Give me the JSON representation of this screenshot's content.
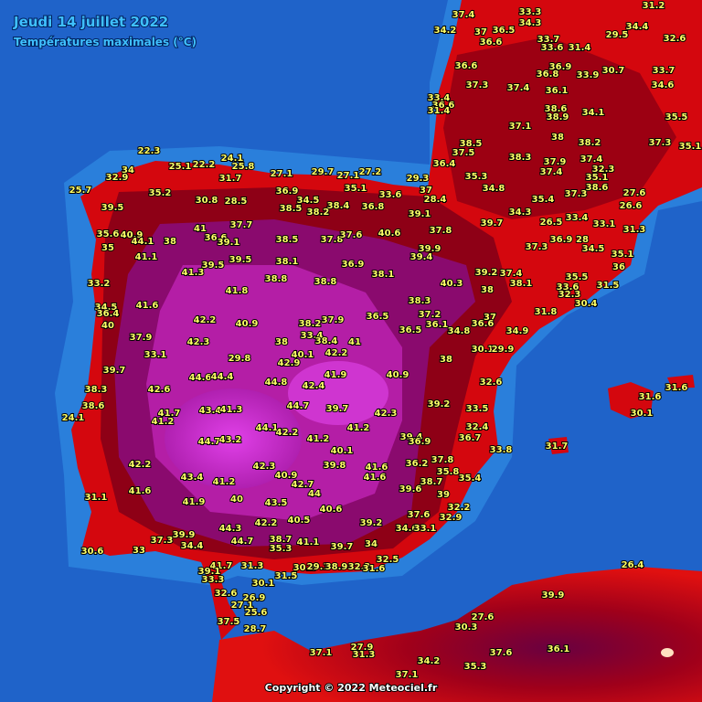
{
  "header": {
    "title": "Jeudi 14 juillet 2022",
    "subtitle": "Températures maximales (°C)"
  },
  "footer": {
    "copyright": "Copyright © 2022 Meteociel.fr"
  },
  "stations": [
    "33.3",
    "37.4",
    "31.2",
    "36.5",
    "34.4",
    "34.3",
    "37",
    "33.7",
    "29.5",
    "32.6",
    "36.6",
    "33.6",
    "31.4",
    "34.2",
    "36.6",
    "36.9",
    "30.7",
    "33.7",
    "36.8",
    "33.9",
    "37.3",
    "37.4",
    "36.1",
    "34.6",
    "33.4",
    "36.6",
    "31.4",
    "38.6",
    "34.1",
    "35.5",
    "38.9",
    "37.1",
    "38.5",
    "38",
    "38.2",
    "37.3",
    "35.1",
    "38.3",
    "37.9",
    "37.4",
    "35.3",
    "34.8",
    "36.4",
    "37.5",
    "37.4",
    "32.3",
    "35.1",
    "37.3",
    "38.6",
    "27.6",
    "35.4",
    "33.4",
    "33.1",
    "26.6",
    "31.3",
    "34.3",
    "26.5",
    "36.9",
    "37.3",
    "28",
    "34.5",
    "35.1",
    "36",
    "35.5",
    "33.6",
    "32.3",
    "31.5",
    "30.4",
    "39.7",
    "38.1",
    "37.4",
    "39.2",
    "38",
    "39.9",
    "39.4",
    "40.3",
    "37.8",
    "39.1",
    "28.4",
    "37",
    "29.3",
    "33.6",
    "36.8",
    "38.4",
    "38.2",
    "38.5",
    "34.5",
    "36.9",
    "35.1",
    "27.1",
    "29.7",
    "27.1",
    "27.2",
    "31.7",
    "25.1",
    "22.2",
    "24.1",
    "25.8",
    "22.3",
    "34",
    "32.9",
    "25.7",
    "35.2",
    "30.8",
    "28.5",
    "39.5",
    "37.7",
    "41",
    "36.6",
    "39.1",
    "38.5",
    "37.8",
    "37.6",
    "40.6",
    "38.1",
    "36.9",
    "38.1",
    "35.6",
    "40.9",
    "44.1",
    "38",
    "35",
    "41.1",
    "39.5",
    "39.5",
    "41.3",
    "38.8",
    "38.8",
    "33.2",
    "41.6",
    "41.8",
    "34.5",
    "36.4",
    "40",
    "42.2",
    "40.9",
    "38.2",
    "37.9",
    "36.5",
    "38.3",
    "37.2",
    "36.1",
    "36.5",
    "34.8",
    "37",
    "36.6",
    "34.9",
    "31.8",
    "37.9",
    "42.3",
    "33.4",
    "38.4",
    "38",
    "41",
    "33.1",
    "40.1",
    "42.2",
    "29.8",
    "42.9",
    "38",
    "30.1",
    "29.9",
    "39.7",
    "44.6",
    "44.4",
    "44.8",
    "42.4",
    "41.9",
    "40.9",
    "32.6",
    "38.3",
    "42.6",
    "38.6",
    "43.4",
    "41.3",
    "44.7",
    "39.7",
    "42.3",
    "39.2",
    "33.5",
    "24.1",
    "41.7",
    "41.2",
    "44.1",
    "42.2",
    "41.2",
    "32.4",
    "36.7",
    "44.7",
    "43.2",
    "41.2",
    "39.4",
    "36.9",
    "40.1",
    "33.8",
    "42.2",
    "42.3",
    "39.8",
    "41.6",
    "36.2",
    "37.8",
    "35.8",
    "38.7",
    "35.4",
    "43.4",
    "41.2",
    "40.9",
    "42.7",
    "41.6",
    "31.1",
    "41.6",
    "41.9",
    "40",
    "43.5",
    "44",
    "40.6",
    "39.6",
    "39",
    "32.2",
    "32.9",
    "37.6",
    "42.2",
    "40.5",
    "39.2",
    "34.6",
    "33.1",
    "44.3",
    "39.9",
    "34.4",
    "37.3",
    "44.7",
    "38.7",
    "35.3",
    "41.1",
    "34",
    "30.6",
    "33",
    "32.5",
    "31.3",
    "39.7",
    "41.7",
    "39.1",
    "33.3",
    "31.5",
    "30.2",
    "29.1",
    "38.9",
    "32.2",
    "31.6",
    "30.1",
    "32.6",
    "26.9",
    "27.1",
    "25.6",
    "37.5",
    "28.7",
    "39.9",
    "26.4",
    "27.6",
    "30.3",
    "37.6",
    "36.1",
    "37.1",
    "27.9",
    "31.3",
    "34.2",
    "35.3",
    "37.1",
    "31.6",
    "31.6",
    "30.1",
    "31.7"
  ]
}
